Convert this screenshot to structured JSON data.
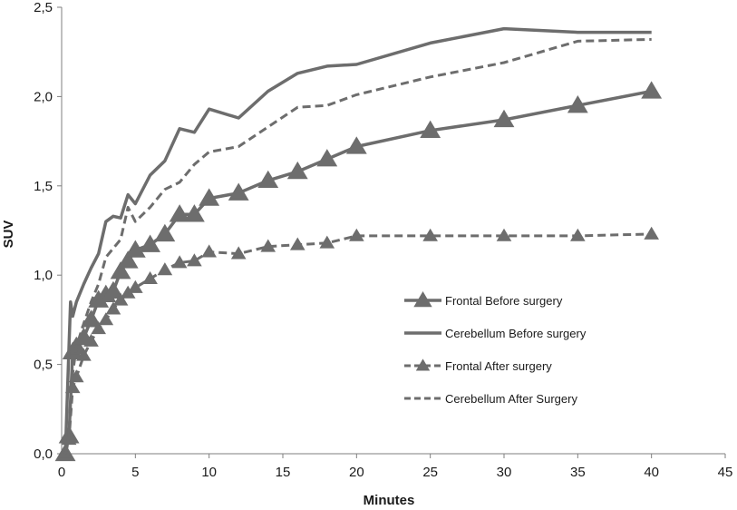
{
  "chart_data": {
    "type": "line",
    "title": "",
    "xlabel": "Minutes",
    "ylabel": "SUV",
    "xlim": [
      0,
      45
    ],
    "ylim": [
      0,
      2.5
    ],
    "x_ticks": [
      0,
      5,
      10,
      15,
      20,
      25,
      30,
      35,
      40,
      45
    ],
    "x_tick_labels": [
      "0",
      "5",
      "10",
      "15",
      "20",
      "25",
      "30",
      "35",
      "40",
      "45"
    ],
    "y_ticks": [
      0,
      0.5,
      1.0,
      1.5,
      2.0,
      2.5
    ],
    "y_tick_labels": [
      "0,0",
      "0,5",
      "1,0",
      "1,5",
      "2,0",
      "2,5"
    ],
    "grid": false,
    "legend_position": "center-right",
    "series": [
      {
        "name": "Frontal Before surgery",
        "line_style": "solid",
        "marker": "triangle",
        "color": "#6d6d6d",
        "x": [
          0.25,
          0.5,
          0.75,
          1.0,
          1.5,
          2.0,
          2.5,
          3.0,
          3.5,
          4.0,
          4.5,
          5.0,
          6.0,
          7.0,
          8.0,
          9.0,
          10.0,
          12.0,
          14.0,
          16.0,
          18.0,
          20.0,
          25.0,
          30.0,
          35.0,
          40.0
        ],
        "y": [
          0.0,
          0.1,
          0.57,
          0.6,
          0.65,
          0.75,
          0.86,
          0.89,
          0.91,
          1.02,
          1.08,
          1.14,
          1.17,
          1.23,
          1.34,
          1.34,
          1.43,
          1.46,
          1.53,
          1.58,
          1.65,
          1.72,
          1.81,
          1.87,
          1.95,
          2.03
        ]
      },
      {
        "name": "Cerebellum Before surgery",
        "line_style": "solid",
        "marker": "none",
        "color": "#6d6d6d",
        "x": [
          0.25,
          0.5,
          0.6,
          0.75,
          1.0,
          1.5,
          2.0,
          2.5,
          3.0,
          3.5,
          4.0,
          4.5,
          5.0,
          6.0,
          7.0,
          8.0,
          9.0,
          10.0,
          12.0,
          14.0,
          16.0,
          18.0,
          20.0,
          25.0,
          30.0,
          35.0,
          40.0
        ],
        "y": [
          0.0,
          0.6,
          0.85,
          0.77,
          0.85,
          0.95,
          1.04,
          1.12,
          1.3,
          1.33,
          1.32,
          1.45,
          1.4,
          1.56,
          1.64,
          1.82,
          1.8,
          1.93,
          1.88,
          2.03,
          2.13,
          2.17,
          2.18,
          2.3,
          2.38,
          2.36,
          2.36
        ]
      },
      {
        "name": "Frontal After surgery",
        "line_style": "dashed",
        "marker": "triangle",
        "color": "#6d6d6d",
        "x": [
          0.25,
          0.5,
          0.75,
          1.0,
          1.5,
          2.0,
          2.5,
          3.0,
          3.5,
          4.0,
          4.5,
          5.0,
          6.0,
          7.0,
          8.0,
          9.0,
          10.0,
          12.0,
          14.0,
          16.0,
          18.0,
          20.0,
          25.0,
          30.0,
          35.0,
          40.0
        ],
        "y": [
          0.0,
          0.08,
          0.37,
          0.43,
          0.55,
          0.63,
          0.7,
          0.75,
          0.81,
          0.86,
          0.9,
          0.93,
          0.98,
          1.03,
          1.07,
          1.08,
          1.13,
          1.12,
          1.16,
          1.17,
          1.18,
          1.22,
          1.22,
          1.22,
          1.22,
          1.23
        ]
      },
      {
        "name": "Cerebellum After Surgery",
        "line_style": "dashed",
        "marker": "none",
        "color": "#6d6d6d",
        "x": [
          0.25,
          0.5,
          0.75,
          1.0,
          1.5,
          2.0,
          2.5,
          3.0,
          3.5,
          4.0,
          4.5,
          5.0,
          6.0,
          7.0,
          8.0,
          9.0,
          10.0,
          12.0,
          14.0,
          16.0,
          18.0,
          20.0,
          25.0,
          30.0,
          35.0,
          40.0
        ],
        "y": [
          0.0,
          0.1,
          0.45,
          0.6,
          0.73,
          0.85,
          0.95,
          1.1,
          1.15,
          1.2,
          1.38,
          1.3,
          1.38,
          1.48,
          1.52,
          1.62,
          1.69,
          1.72,
          1.83,
          1.94,
          1.95,
          2.01,
          2.11,
          2.19,
          2.31,
          2.32
        ]
      }
    ]
  }
}
